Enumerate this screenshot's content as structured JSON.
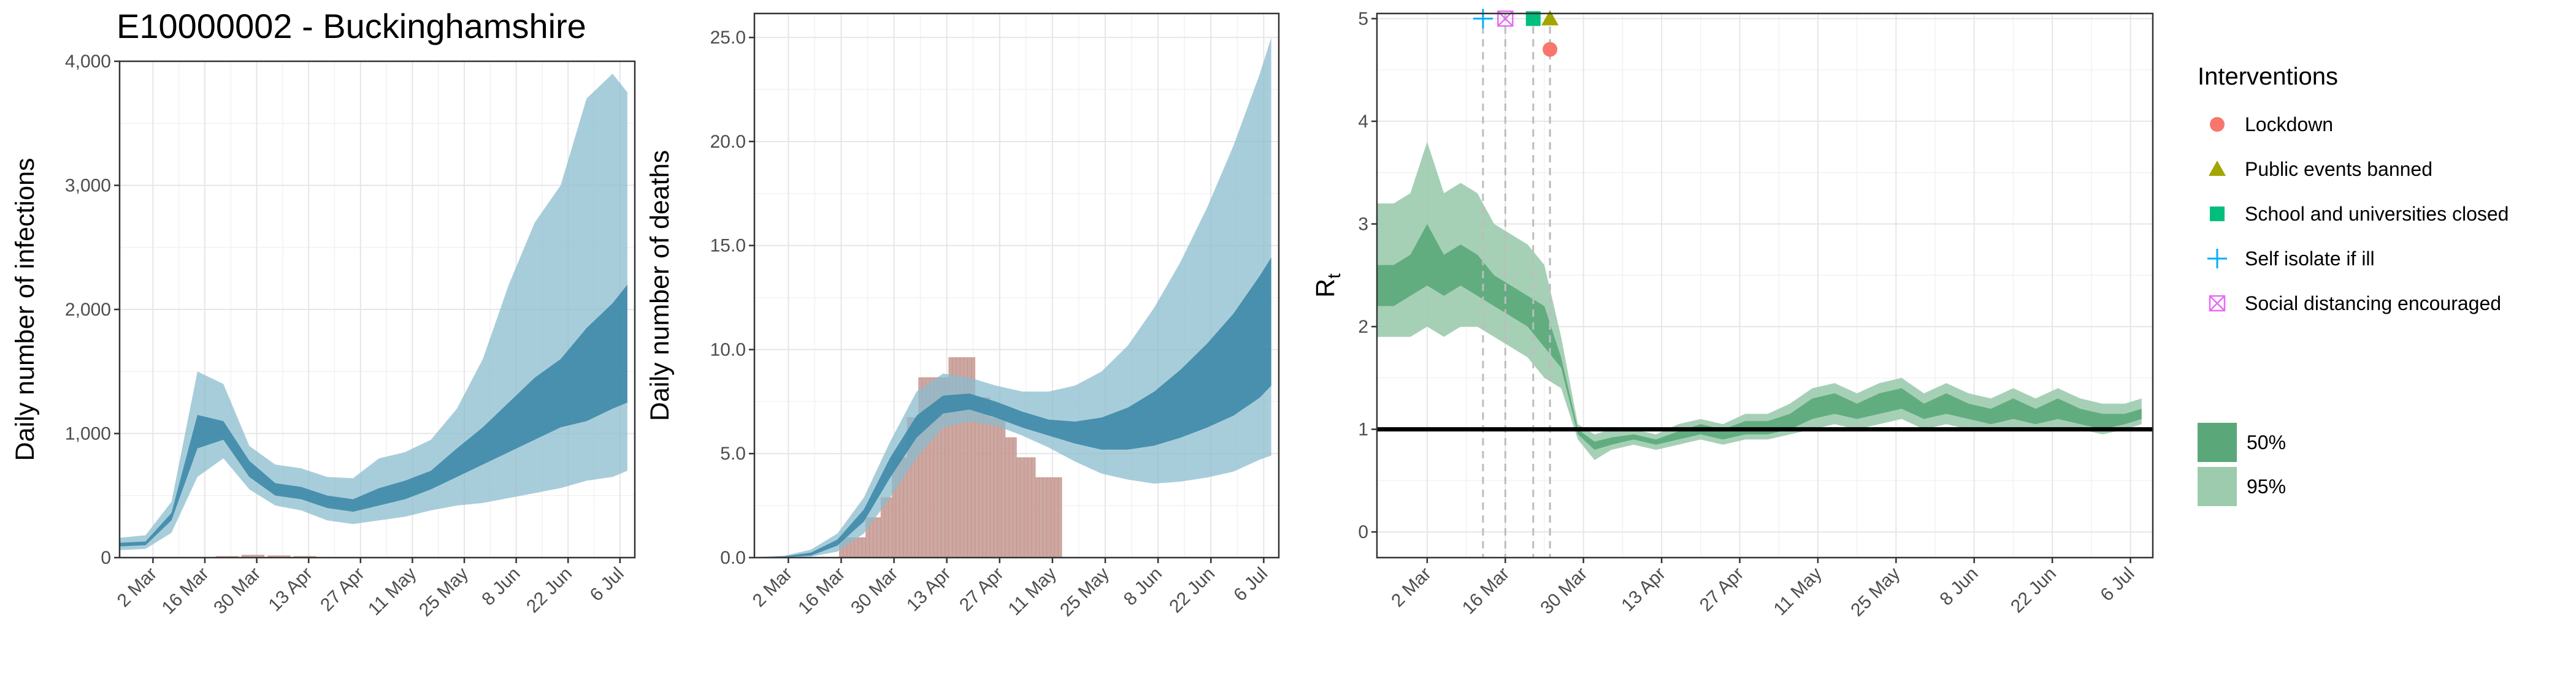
{
  "figure": {
    "title": "E10000002 - Buckinghamshire",
    "date_labels": [
      "2 Mar",
      "16 Mar",
      "30 Mar",
      "13 Apr",
      "27 Apr",
      "11 May",
      "25 May",
      "8 Jun",
      "22 Jun",
      "6 Jul"
    ],
    "colors": {
      "infection_band_95": "#8bbccd",
      "infection_band_50": "#3d8aa8",
      "reported_bar_fill": "#c5a09a",
      "reported_bar_stroke": "#d08a80",
      "rt_band_95": "#9ccbae",
      "rt_band_50": "#5aa879",
      "rt_line": "#000000",
      "lockdown": "#f8766d",
      "public_events_banned": "#a3a500",
      "school_closed": "#00bf7d",
      "self_isolate": "#00b0f6",
      "social_distancing": "#e76bf3"
    }
  },
  "chart_data": [
    {
      "type": "area",
      "panel": "infections",
      "ylabel": "Daily number of infections",
      "x_dates": [
        "2020-02-22",
        "2020-02-29",
        "2020-03-07",
        "2020-03-14",
        "2020-03-21",
        "2020-03-28",
        "2020-04-04",
        "2020-04-11",
        "2020-04-18",
        "2020-04-25",
        "2020-05-02",
        "2020-05-09",
        "2020-05-16",
        "2020-05-23",
        "2020-05-30",
        "2020-06-06",
        "2020-06-13",
        "2020-06-20",
        "2020-06-27",
        "2020-07-04",
        "2020-07-08"
      ],
      "series": [
        {
          "band": "95%",
          "lower": [
            60,
            70,
            200,
            650,
            800,
            550,
            420,
            380,
            300,
            270,
            300,
            330,
            380,
            420,
            440,
            480,
            520,
            560,
            620,
            650,
            700
          ],
          "upper": [
            160,
            180,
            450,
            1500,
            1400,
            900,
            750,
            720,
            650,
            640,
            800,
            850,
            950,
            1200,
            1600,
            2200,
            2700,
            3000,
            3700,
            3900,
            3750
          ]
        },
        {
          "band": "50%",
          "lower": [
            90,
            100,
            300,
            880,
            950,
            650,
            500,
            470,
            400,
            370,
            420,
            470,
            550,
            650,
            750,
            850,
            950,
            1050,
            1100,
            1200,
            1250
          ],
          "upper": [
            120,
            130,
            360,
            1150,
            1100,
            780,
            600,
            570,
            500,
            470,
            560,
            620,
            700,
            880,
            1050,
            1250,
            1450,
            1600,
            1850,
            2050,
            2200
          ]
        }
      ],
      "reported": {
        "dates": [
          "2020-03-22",
          "2020-03-29",
          "2020-04-05",
          "2020-04-12"
        ],
        "values": [
          10,
          20,
          15,
          10
        ]
      },
      "ylim": [
        0,
        4000
      ],
      "yticks": [
        "0",
        "1,000",
        "2,000",
        "3,000",
        "4,000"
      ]
    },
    {
      "type": "area",
      "panel": "deaths",
      "ylabel": "Daily number of deaths",
      "x_dates": [
        "2020-02-22",
        "2020-03-01",
        "2020-03-08",
        "2020-03-15",
        "2020-03-22",
        "2020-03-29",
        "2020-04-05",
        "2020-04-12",
        "2020-04-19",
        "2020-04-26",
        "2020-05-03",
        "2020-05-10",
        "2020-05-17",
        "2020-05-24",
        "2020-05-31",
        "2020-06-07",
        "2020-06-14",
        "2020-06-21",
        "2020-06-28",
        "2020-07-05",
        "2020-07-08"
      ],
      "series": [
        {
          "band": "95%",
          "lower": [
            0,
            0,
            0.05,
            0.3,
            1.2,
            3,
            5,
            6.5,
            6.8,
            6.6,
            6.1,
            5.5,
            4.8,
            4.2,
            3.9,
            3.7,
            3.8,
            4.0,
            4.3,
            4.9,
            5.1
          ],
          "upper": [
            0.02,
            0.1,
            0.4,
            1.2,
            3,
            5.8,
            8.3,
            9.2,
            9.0,
            8.6,
            8.3,
            8.3,
            8.6,
            9.3,
            10.6,
            12.5,
            14.8,
            17.5,
            20.6,
            24.2,
            26
          ]
        },
        {
          "band": "50%",
          "lower": [
            0,
            0.02,
            0.1,
            0.6,
            1.8,
            4,
            6,
            7.2,
            7.4,
            7.0,
            6.5,
            6.1,
            5.7,
            5.4,
            5.4,
            5.6,
            6.0,
            6.5,
            7.1,
            8.0,
            8.6
          ],
          "upper": [
            0.01,
            0.06,
            0.25,
            0.9,
            2.4,
            5,
            7.1,
            8.1,
            8.2,
            7.8,
            7.3,
            6.9,
            6.8,
            7.0,
            7.5,
            8.3,
            9.4,
            10.7,
            12.2,
            14.1,
            15
          ]
        }
      ],
      "reported": {
        "dates": [
          "2020-03-16",
          "2020-03-17",
          "2020-03-18",
          "2020-03-19",
          "2020-03-20",
          "2020-03-21",
          "2020-03-22",
          "2020-03-23",
          "2020-03-24",
          "2020-03-25",
          "2020-03-26",
          "2020-03-27",
          "2020-03-28",
          "2020-03-29",
          "2020-03-30",
          "2020-03-31",
          "2020-04-01",
          "2020-04-02",
          "2020-04-03",
          "2020-04-04",
          "2020-04-05",
          "2020-04-06",
          "2020-04-07",
          "2020-04-08",
          "2020-04-09",
          "2020-04-10",
          "2020-04-11",
          "2020-04-12",
          "2020-04-13",
          "2020-04-14",
          "2020-04-15",
          "2020-04-16",
          "2020-04-17",
          "2020-04-18",
          "2020-04-19",
          "2020-04-20",
          "2020-04-21",
          "2020-04-22",
          "2020-04-23",
          "2020-04-24",
          "2020-04-25",
          "2020-04-26",
          "2020-04-27",
          "2020-04-28",
          "2020-04-29",
          "2020-04-30",
          "2020-05-01",
          "2020-05-02",
          "2020-05-03",
          "2020-05-04",
          "2020-05-05",
          "2020-05-06",
          "2020-05-07",
          "2020-05-08",
          "2020-05-09",
          "2020-05-10",
          "2020-05-11",
          "2020-05-12",
          "2020-05-13"
        ],
        "values": [
          1,
          1,
          1,
          1,
          1,
          1,
          1,
          2,
          2,
          2,
          2,
          3,
          3,
          3,
          5,
          5,
          5,
          5,
          7,
          7,
          7,
          9,
          9,
          9,
          9,
          9,
          9,
          9,
          9,
          10,
          10,
          10,
          10,
          10,
          10,
          10,
          8,
          8,
          8,
          8,
          7,
          7,
          7,
          7,
          6,
          6,
          6,
          5,
          5,
          5,
          5,
          5,
          4,
          4,
          4,
          4,
          4,
          4,
          4
        ]
      },
      "ylim": [
        0,
        26
      ],
      "yticks": [
        "0.0",
        "5.0",
        "10.0",
        "15.0",
        "20.0",
        "25.0"
      ]
    },
    {
      "type": "area",
      "panel": "rt",
      "ylabel": "R",
      "ylabel_subscript": "t",
      "x_dates": [
        "2020-02-22",
        "2020-02-25",
        "2020-02-28",
        "2020-03-02",
        "2020-03-05",
        "2020-03-08",
        "2020-03-11",
        "2020-03-14",
        "2020-03-17",
        "2020-03-20",
        "2020-03-23",
        "2020-03-26",
        "2020-03-29",
        "2020-04-01",
        "2020-04-04",
        "2020-04-08",
        "2020-04-12",
        "2020-04-16",
        "2020-04-20",
        "2020-04-24",
        "2020-04-28",
        "2020-05-02",
        "2020-05-06",
        "2020-05-10",
        "2020-05-14",
        "2020-05-18",
        "2020-05-22",
        "2020-05-26",
        "2020-05-30",
        "2020-06-03",
        "2020-06-07",
        "2020-06-11",
        "2020-06-15",
        "2020-06-19",
        "2020-06-23",
        "2020-06-27",
        "2020-07-01",
        "2020-07-05",
        "2020-07-08"
      ],
      "series": [
        {
          "band": "95%",
          "lower": [
            1.9,
            1.9,
            1.9,
            2.0,
            1.9,
            2.0,
            2.0,
            1.9,
            1.8,
            1.7,
            1.5,
            1.4,
            0.9,
            0.7,
            0.8,
            0.85,
            0.8,
            0.85,
            0.9,
            0.85,
            0.9,
            0.9,
            0.95,
            1.0,
            1.05,
            1.0,
            1.05,
            1.1,
            1.0,
            1.05,
            1.0,
            1.0,
            1.0,
            1.0,
            1.0,
            1.0,
            0.95,
            1.0,
            1.05
          ],
          "upper": [
            3.2,
            3.2,
            3.3,
            3.8,
            3.3,
            3.4,
            3.3,
            3.0,
            2.9,
            2.8,
            2.6,
            1.9,
            1.05,
            0.95,
            1.0,
            1.0,
            0.95,
            1.05,
            1.1,
            1.05,
            1.15,
            1.15,
            1.25,
            1.4,
            1.45,
            1.35,
            1.45,
            1.5,
            1.35,
            1.45,
            1.35,
            1.3,
            1.4,
            1.3,
            1.4,
            1.3,
            1.25,
            1.25,
            1.3
          ]
        },
        {
          "band": "50%",
          "lower": [
            2.2,
            2.2,
            2.3,
            2.4,
            2.3,
            2.4,
            2.3,
            2.2,
            2.1,
            2.0,
            1.8,
            1.6,
            0.95,
            0.8,
            0.85,
            0.9,
            0.85,
            0.9,
            0.95,
            0.9,
            0.95,
            0.95,
            1.0,
            1.1,
            1.15,
            1.1,
            1.15,
            1.2,
            1.1,
            1.15,
            1.1,
            1.05,
            1.1,
            1.05,
            1.1,
            1.05,
            1.0,
            1.05,
            1.1
          ],
          "upper": [
            2.6,
            2.6,
            2.7,
            3.0,
            2.7,
            2.8,
            2.7,
            2.5,
            2.4,
            2.3,
            2.2,
            1.7,
            1.0,
            0.88,
            0.92,
            0.95,
            0.9,
            0.98,
            1.05,
            1.0,
            1.08,
            1.08,
            1.15,
            1.3,
            1.35,
            1.25,
            1.35,
            1.4,
            1.25,
            1.35,
            1.25,
            1.2,
            1.3,
            1.2,
            1.3,
            1.2,
            1.15,
            1.15,
            1.2
          ]
        }
      ],
      "reference_line": 1,
      "ylim": [
        0,
        5
      ],
      "yticks": [
        "0",
        "1",
        "2",
        "3",
        "4",
        "5"
      ],
      "interventions": [
        {
          "name": "Self isolate if ill",
          "date": "2020-03-12",
          "rt": 5.0,
          "shape": "plus",
          "color_key": "self_isolate"
        },
        {
          "name": "Social distancing encouraged",
          "date": "2020-03-16",
          "rt": 5.0,
          "shape": "boxx",
          "color_key": "social_distancing"
        },
        {
          "name": "School and universities closed",
          "date": "2020-03-21",
          "rt": 5.0,
          "shape": "square",
          "color_key": "school_closed"
        },
        {
          "name": "Public events banned",
          "date": "2020-03-24",
          "rt": 5.0,
          "shape": "triangle",
          "color_key": "public_events_banned"
        },
        {
          "name": "Lockdown",
          "date": "2020-03-24",
          "rt": 4.7,
          "shape": "circle",
          "color_key": "lockdown"
        }
      ]
    }
  ],
  "legend": {
    "title": "Interventions",
    "items": [
      {
        "label": "Lockdown",
        "shape": "circle",
        "color_key": "lockdown"
      },
      {
        "label": "Public events banned",
        "shape": "triangle",
        "color_key": "public_events_banned"
      },
      {
        "label": "School and universities closed",
        "shape": "square",
        "color_key": "school_closed"
      },
      {
        "label": "Self isolate if ill",
        "shape": "plus",
        "color_key": "self_isolate"
      },
      {
        "label": "Social distancing encouraged",
        "shape": "boxx",
        "color_key": "social_distancing"
      }
    ],
    "ci_items": [
      {
        "label": "50%",
        "color_key": "rt_band_50"
      },
      {
        "label": "95%",
        "color_key": "rt_band_95"
      }
    ]
  }
}
